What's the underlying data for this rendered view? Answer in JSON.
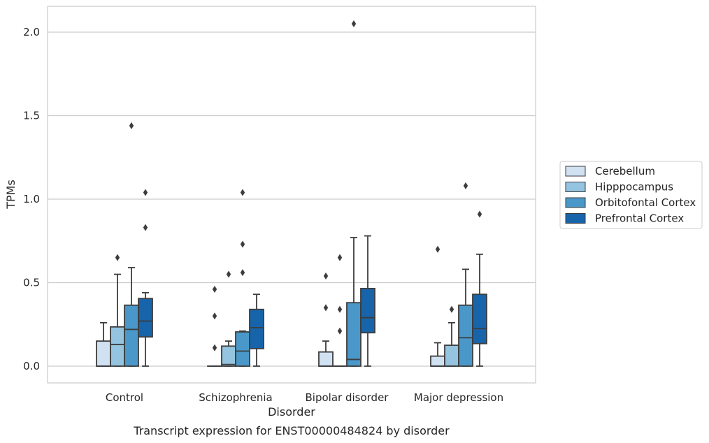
{
  "chart_data": {
    "type": "boxplot",
    "xlabel": "Disorder",
    "ylabel": "TPMs",
    "caption": "Transcript expression for ENST00000484824 by disorder",
    "ylim": [
      -0.1,
      2.15
    ],
    "yticks": [
      0.0,
      0.5,
      1.0,
      1.5,
      2.0
    ],
    "ytick_labels": [
      "0.0",
      "0.5",
      "1.0",
      "1.5",
      "2.0"
    ],
    "grid": "horizontal",
    "legend_placement": "outside-right",
    "categories": [
      "Control",
      "Schizophrenia",
      "Bipolar disorder",
      "Major depression"
    ],
    "series": [
      {
        "name": "Cerebellum",
        "color": "#d0e1f2",
        "boxes": [
          {
            "whislo": 0.0,
            "q1": 0.0,
            "med": 0.0,
            "q3": 0.15,
            "whishi": 0.26,
            "fliers": []
          },
          {
            "whislo": 0.0,
            "q1": 0.0,
            "med": 0.0,
            "q3": 0.0,
            "whishi": 0.0,
            "fliers": [
              0.11,
              0.3,
              0.46
            ]
          },
          {
            "whislo": 0.0,
            "q1": 0.0,
            "med": 0.0,
            "q3": 0.085,
            "whishi": 0.15,
            "fliers": [
              0.35,
              0.54
            ]
          },
          {
            "whislo": 0.0,
            "q1": 0.0,
            "med": 0.0,
            "q3": 0.06,
            "whishi": 0.14,
            "fliers": [
              0.7
            ]
          }
        ]
      },
      {
        "name": "Hipppocampus",
        "color": "#94c4df",
        "boxes": [
          {
            "whislo": 0.0,
            "q1": 0.0,
            "med": 0.13,
            "q3": 0.235,
            "whishi": 0.55,
            "fliers": [
              0.65
            ]
          },
          {
            "whislo": 0.0,
            "q1": 0.0,
            "med": 0.01,
            "q3": 0.12,
            "whishi": 0.15,
            "fliers": [
              0.55
            ]
          },
          {
            "whislo": 0.0,
            "q1": 0.0,
            "med": 0.0,
            "q3": 0.0,
            "whishi": 0.0,
            "fliers": [
              0.21,
              0.34,
              0.65
            ]
          },
          {
            "whislo": 0.0,
            "q1": 0.0,
            "med": 0.0,
            "q3": 0.125,
            "whishi": 0.26,
            "fliers": [
              0.34
            ]
          }
        ]
      },
      {
        "name": "Orbitofontal Cortex",
        "color": "#4a98c9",
        "boxes": [
          {
            "whislo": 0.0,
            "q1": 0.0,
            "med": 0.22,
            "q3": 0.365,
            "whishi": 0.59,
            "fliers": [
              1.44
            ]
          },
          {
            "whislo": 0.0,
            "q1": 0.0,
            "med": 0.09,
            "q3": 0.205,
            "whishi": 0.21,
            "fliers": [
              0.56,
              0.73,
              1.04
            ]
          },
          {
            "whislo": 0.0,
            "q1": 0.0,
            "med": 0.04,
            "q3": 0.38,
            "whishi": 0.77,
            "fliers": [
              2.05
            ]
          },
          {
            "whislo": 0.0,
            "q1": 0.0,
            "med": 0.17,
            "q3": 0.365,
            "whishi": 0.58,
            "fliers": [
              1.08
            ]
          }
        ]
      },
      {
        "name": "Prefrontal Cortex",
        "color": "#1764ab",
        "boxes": [
          {
            "whislo": 0.0,
            "q1": 0.175,
            "med": 0.27,
            "q3": 0.405,
            "whishi": 0.44,
            "fliers": [
              0.83,
              1.04
            ]
          },
          {
            "whislo": 0.0,
            "q1": 0.105,
            "med": 0.23,
            "q3": 0.34,
            "whishi": 0.43,
            "fliers": []
          },
          {
            "whislo": 0.0,
            "q1": 0.2,
            "med": 0.29,
            "q3": 0.465,
            "whishi": 0.78,
            "fliers": []
          },
          {
            "whislo": 0.0,
            "q1": 0.135,
            "med": 0.225,
            "q3": 0.43,
            "whishi": 0.67,
            "fliers": [
              0.91
            ]
          }
        ]
      }
    ]
  }
}
